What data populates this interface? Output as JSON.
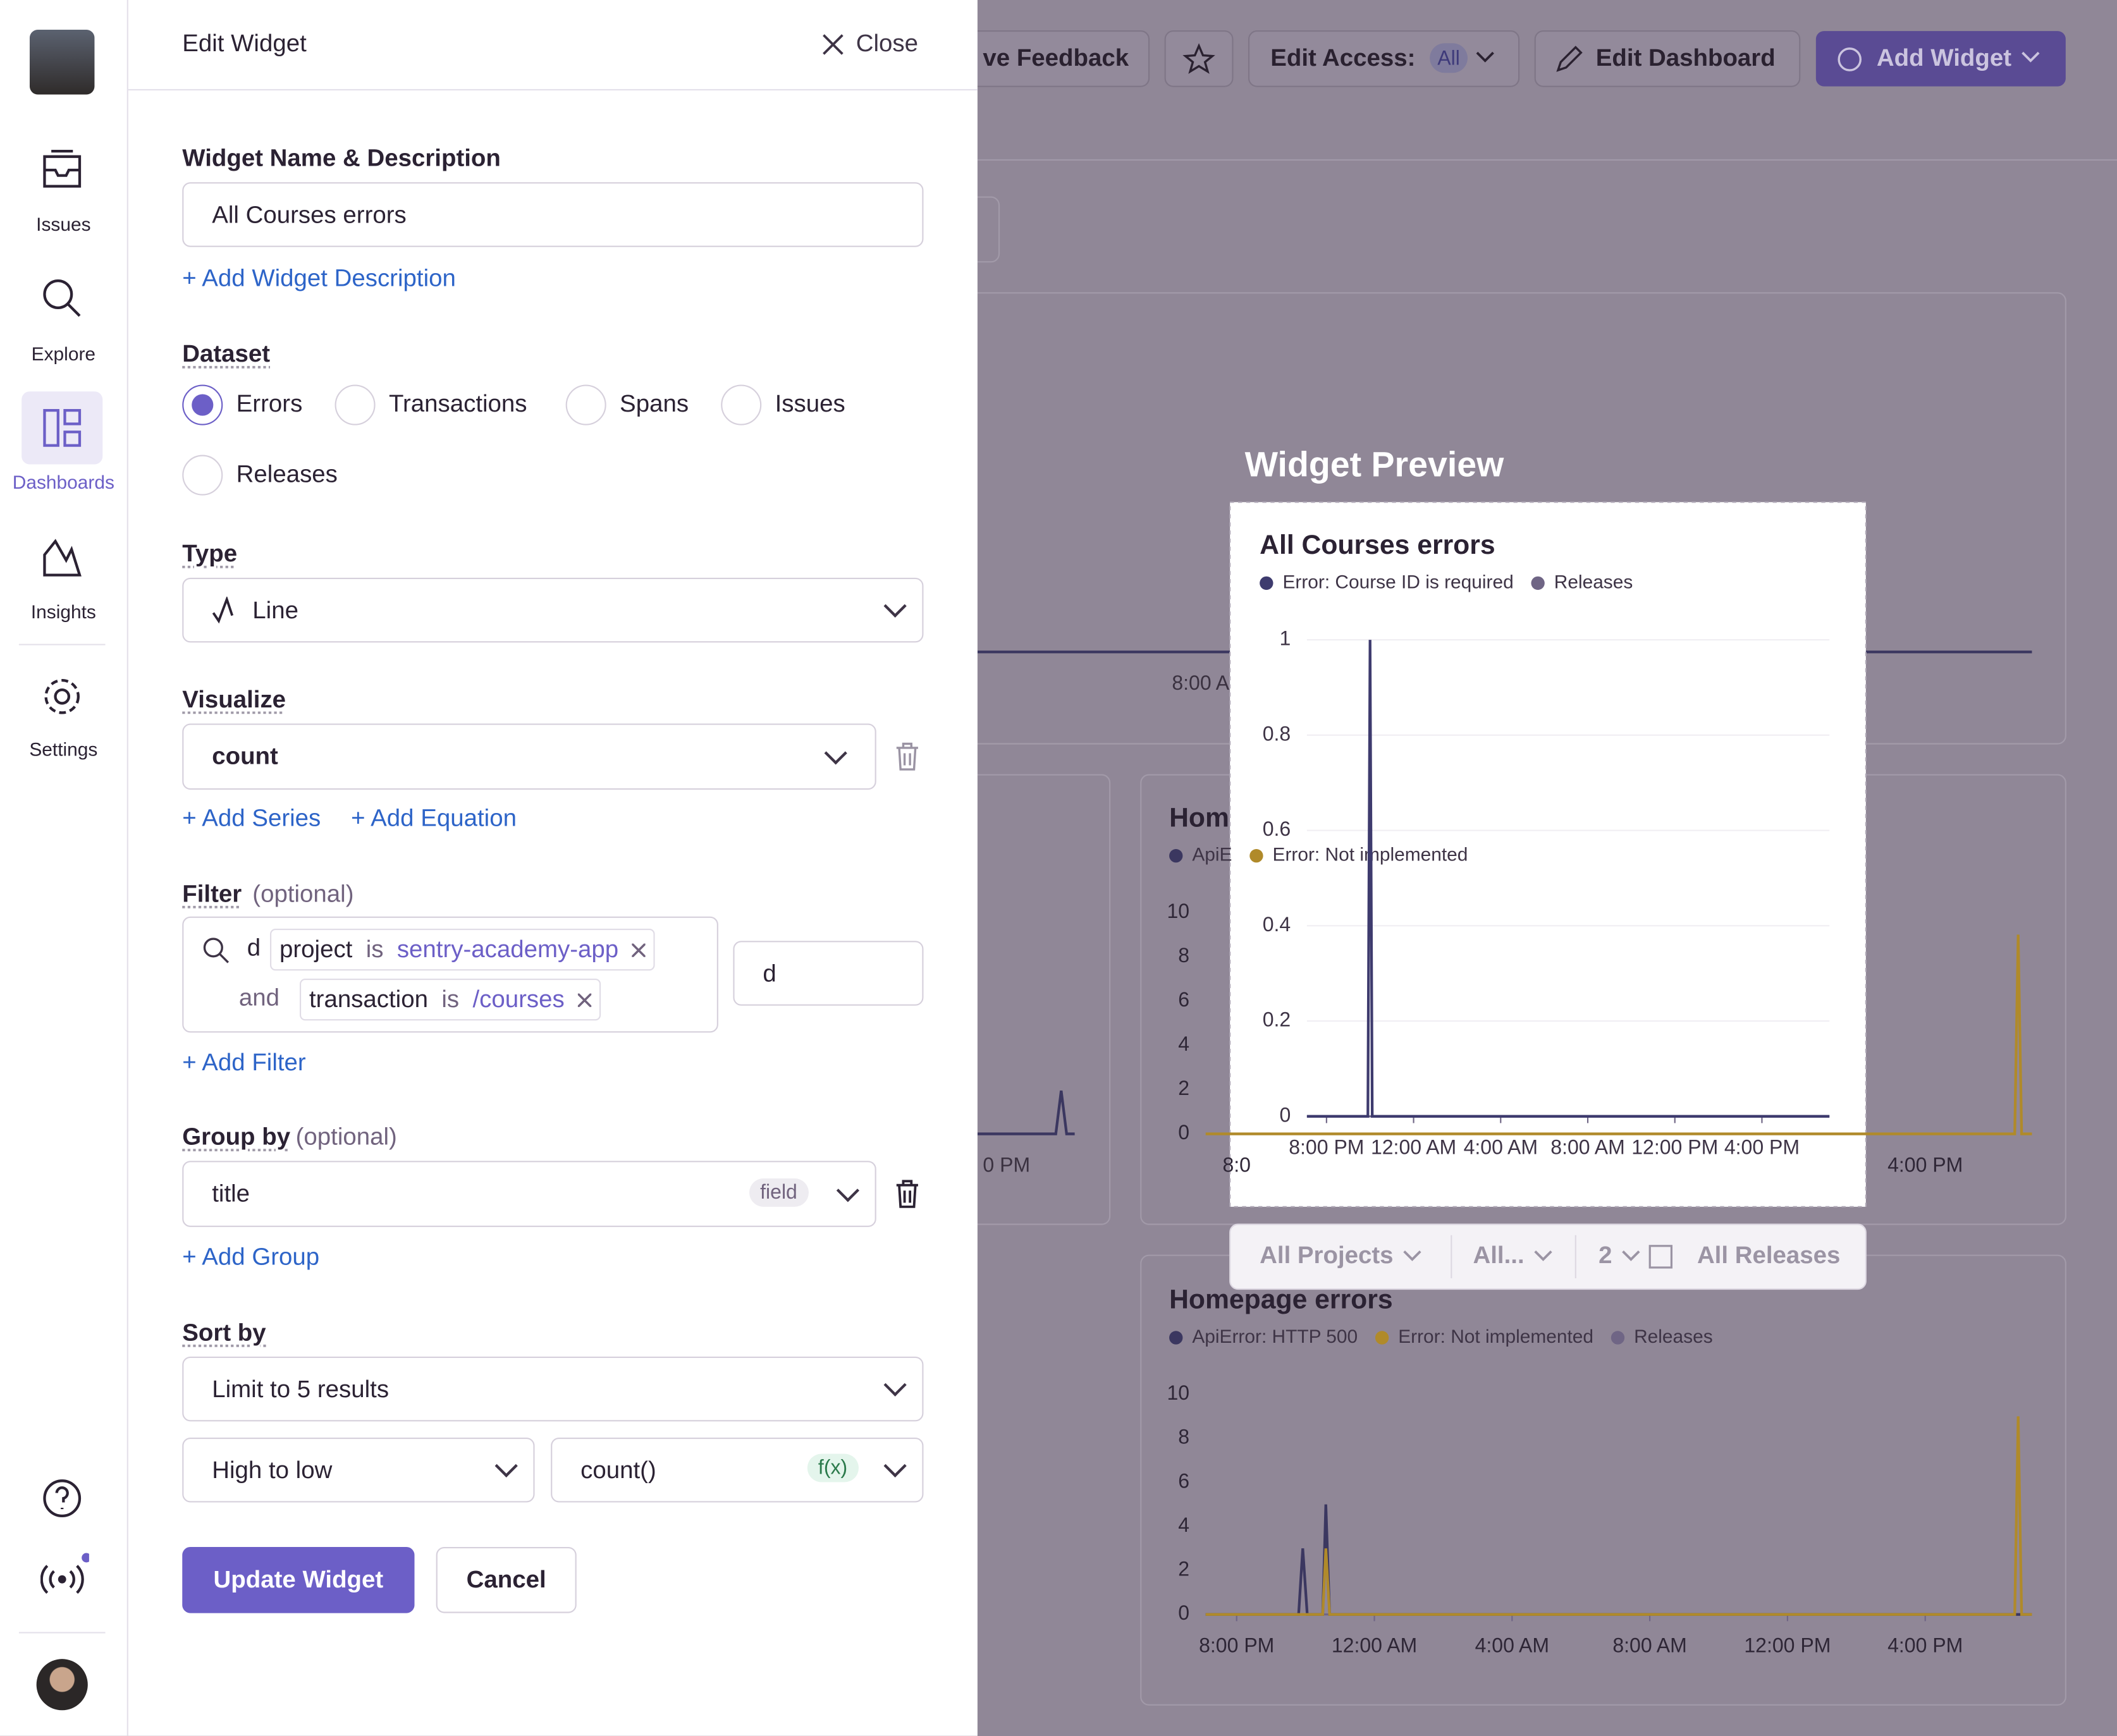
{
  "sidebar": {
    "nav": [
      "Issues",
      "Explore",
      "Dashboards",
      "Insights",
      "Settings"
    ],
    "active": "Dashboards"
  },
  "background": {
    "buttons": [
      "ve Feedback",
      "Edit Access:",
      "All",
      "Edit Dashboard",
      "Add Widget"
    ],
    "fragments": [
      "8:00 A",
      "0 PM"
    ],
    "chart": {
      "type": "line",
      "title": "Hom",
      "grid": false,
      "series": [
        {
          "name": "ApiE",
          "color": "#3b3760",
          "x": [],
          "values": []
        },
        {
          "name": "Error: Not implemented",
          "color": "#b08a2a",
          "x": [
            0,
            23.5,
            23.6,
            23.7,
            24
          ],
          "values": [
            0,
            0,
            9,
            0,
            0
          ]
        }
      ],
      "xlim": [
        0,
        24
      ],
      "xticks": [
        {
          "value": 0.9,
          "label": "8:0"
        },
        {
          "value": 20.9,
          "label": "4:00 PM"
        }
      ],
      "ylim": [
        0,
        10
      ],
      "yticks": [
        0,
        2,
        4,
        6,
        8,
        10
      ]
    },
    "chart2": {
      "type": "line",
      "title": "Homepage errors",
      "grid": false,
      "release_legend": "Releases",
      "series": [
        {
          "name": "ApiError: HTTP 500",
          "color": "#3b3760",
          "x": [
            0,
            2.7,
            2.82,
            2.95,
            3.4,
            3.49,
            3.6,
            24
          ],
          "values": [
            0,
            0,
            3,
            0,
            0,
            5,
            0,
            0
          ]
        },
        {
          "name": "Error: Not implemented",
          "color": "#b08a2a",
          "x": [
            0,
            3.4,
            3.49,
            3.6,
            23.5,
            23.6,
            23.7,
            24
          ],
          "values": [
            0,
            0,
            3,
            0,
            0,
            9,
            0,
            0
          ]
        }
      ],
      "xlim": [
        0,
        24
      ],
      "xticks": [
        {
          "value": 0.9,
          "label": "8:00 PM"
        },
        {
          "value": 4.9,
          "label": "12:00 AM"
        },
        {
          "value": 8.9,
          "label": "4:00 AM"
        },
        {
          "value": 12.9,
          "label": "8:00 AM"
        },
        {
          "value": 16.9,
          "label": "12:00 PM"
        },
        {
          "value": 20.9,
          "label": "4:00 PM"
        }
      ],
      "ylim": [
        0,
        10
      ],
      "yticks": [
        0,
        2,
        4,
        6,
        8,
        10
      ]
    }
  },
  "drawer": {
    "title": "Edit Widget",
    "close": "Close",
    "name_label": "Widget Name & Description",
    "name_value": "All Courses errors",
    "add_description": "+ Add Widget Description",
    "dataset_label": "Dataset",
    "dataset_options": [
      "Errors",
      "Transactions",
      "Spans",
      "Issues",
      "Releases"
    ],
    "dataset_selected": "Errors",
    "type_label": "Type",
    "type_value": "Line",
    "visualize_label": "Visualize",
    "visualize_value": "count",
    "add_series": "+ Add Series",
    "add_equation": "+ Add Equation",
    "filter_label": "Filter",
    "optional": "(optional)",
    "filter_prefix": "d",
    "filter_tokens": [
      {
        "key": "project",
        "op": "is",
        "value": "sentry-academy-app"
      },
      {
        "conj": "and",
        "key": "transaction",
        "op": "is",
        "value": "/courses"
      }
    ],
    "filter_side": "d",
    "add_filter": "+ Add Filter",
    "group_label": "Group by",
    "group_value": "title",
    "group_badge": "field",
    "add_group": "+ Add Group",
    "sort_label": "Sort by",
    "sort_limit": "Limit to 5 results",
    "sort_order": "High to low",
    "sort_field": "count()",
    "sort_badge": "f(x)",
    "update": "Update Widget",
    "cancel": "Cancel"
  },
  "preview": {
    "heading": "Widget Preview",
    "filters": [
      "All Projects",
      "All...",
      "2",
      "All Releases"
    ],
    "chart": {
      "type": "line",
      "title": "All Courses errors",
      "grid": true,
      "release_legend": "Releases",
      "series": [
        {
          "name": "Error: Course ID is required",
          "color": "#3e3b6e",
          "x": [
            0,
            2.8,
            2.9,
            3.0,
            24
          ],
          "values": [
            0,
            0,
            1,
            0,
            0
          ]
        }
      ],
      "xlim": [
        0,
        24
      ],
      "xticks": [
        {
          "value": 0.9,
          "label": "8:00 PM"
        },
        {
          "value": 4.9,
          "label": "12:00 AM"
        },
        {
          "value": 8.9,
          "label": "4:00 AM"
        },
        {
          "value": 12.9,
          "label": "8:00 AM"
        },
        {
          "value": 16.9,
          "label": "12:00 PM"
        },
        {
          "value": 20.9,
          "label": "4:00 PM"
        }
      ],
      "ylim": [
        0,
        1
      ],
      "yticks": [
        0,
        0.2,
        0.4,
        0.6,
        0.8,
        1
      ]
    }
  }
}
